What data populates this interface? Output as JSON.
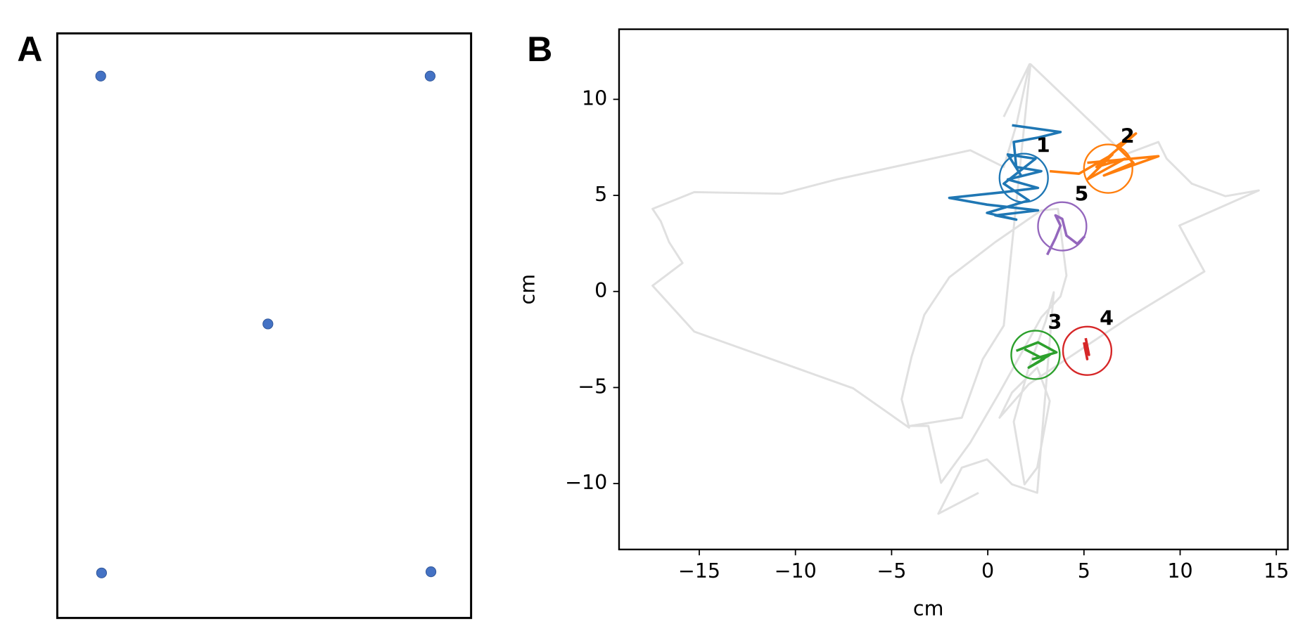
{
  "chart_data": [
    {
      "type": "scatter",
      "label": "A",
      "color": "#4472c4",
      "xlim": [
        0,
        1
      ],
      "ylim": [
        0,
        1
      ],
      "x": [
        0.105,
        0.901,
        0.509,
        0.107,
        0.903
      ],
      "y": [
        0.927,
        0.927,
        0.503,
        0.077,
        0.079
      ]
    },
    {
      "type": "line",
      "label": "B",
      "xlabel": "cm",
      "ylabel": "cm",
      "xlim": [
        -19.17,
        15.6
      ],
      "ylim": [
        -13.43,
        13.65
      ],
      "xticks": [
        {
          "value": -15,
          "label": "−15"
        },
        {
          "value": -10,
          "label": "−10"
        },
        {
          "value": -5,
          "label": "−5"
        },
        0,
        5,
        10,
        15
      ],
      "yticks": [
        {
          "value": -10,
          "label": "−10"
        },
        {
          "value": -5,
          "label": "−5"
        },
        0,
        5,
        10
      ],
      "background": {
        "color": "#e0e0e0",
        "x": [
          0.83,
          2.17,
          1.48,
          0.83,
          -0.91,
          -7.87,
          -10.7,
          -15.26,
          -17.43,
          -17.0,
          -16.57,
          -15.87,
          -17.43,
          -15.26,
          -7.0,
          -4.09,
          -4.48,
          -3.96,
          -3.3,
          -2.0,
          0.39,
          2.78,
          3.65,
          4.09,
          3.78,
          2.78,
          1.7,
          0.61,
          -0.91,
          -2.43,
          -3.09,
          -4.04,
          -1.35,
          -0.26,
          0.83,
          2.22,
          7.13,
          8.87,
          9.3,
          10.61,
          12.35,
          14.09,
          9.96,
          11.26,
          7.35,
          4.74,
          2.13,
          0.61,
          1.26,
          2.57,
          3.22,
          2.57,
          1.91,
          1.35,
          2.13,
          3.0,
          3.43,
          2.57,
          1.26,
          -0.04,
          -1.35,
          -2.57,
          -0.48
        ],
        "y": [
          9.09,
          11.83,
          8.65,
          6.48,
          7.35,
          5.83,
          5.09,
          5.17,
          4.3,
          3.65,
          2.57,
          1.48,
          0.3,
          -2.09,
          -5.04,
          -7.09,
          -5.61,
          -3.39,
          -1.22,
          0.74,
          2.57,
          4.22,
          4.3,
          0.83,
          -0.26,
          -1.35,
          -3.3,
          -5.26,
          -7.87,
          -9.96,
          -7.0,
          -7.0,
          -6.57,
          -3.52,
          -1.78,
          11.83,
          7.13,
          7.78,
          6.91,
          5.61,
          4.96,
          5.26,
          3.43,
          1.04,
          -1.35,
          -3.09,
          -4.83,
          -6.57,
          -5.26,
          -3.96,
          -5.7,
          -9.17,
          -10.04,
          -6.78,
          -3.96,
          -1.57,
          -0.04,
          -10.48,
          -10.04,
          -8.74,
          -9.17,
          -11.57,
          -10.48
        ]
      },
      "series": [
        {
          "label": "1",
          "color": "#1f77b4",
          "x": [
            1.26,
            3.78,
            2.57,
            1.35,
            1.48,
            2.78,
            1.04,
            2.61,
            0.83,
            -2.0,
            -0.04,
            2.61,
            0.39,
            1.48,
            -0.04,
            2.13,
            0.83,
            2.48,
            1.04,
            1.78
          ],
          "y": [
            8.65,
            8.3,
            8.0,
            7.78,
            6.48,
            6.26,
            5.83,
            5.39,
            5.17,
            4.87,
            4.52,
            4.22,
            3.96,
            3.74,
            4.09,
            4.74,
            5.61,
            6.91,
            7.13,
            5.96
          ],
          "circle": {
            "x": 1.87,
            "y": 5.91,
            "r": 1.26
          }
        },
        {
          "label": "2",
          "color": "#ff7f0e",
          "x": [
            3.22,
            4.74,
            6.48,
            5.17,
            7.13,
            5.65,
            7.7,
            6.7,
            7.57,
            6.04,
            8.87,
            5.17
          ],
          "y": [
            6.26,
            6.13,
            7.13,
            5.83,
            6.91,
            6.48,
            8.22,
            7.57,
            6.7,
            6.04,
            7.04,
            6.7
          ],
          "circle": {
            "x": 6.26,
            "y": 6.39,
            "r": 1.26
          }
        },
        {
          "label": "3",
          "color": "#2ca02c",
          "x": [
            1.48,
            2.61,
            3.57,
            2.35,
            3.22,
            2.13,
            2.91,
            1.91
          ],
          "y": [
            -3.09,
            -2.65,
            -3.17,
            -3.52,
            -3.3,
            -3.96,
            -3.52,
            -3.0
          ],
          "circle": {
            "x": 2.48,
            "y": -3.3,
            "r": 1.26
          }
        },
        {
          "label": "4",
          "color": "#d62728",
          "x": [
            5.09,
            5.26,
            5.04,
            5.17,
            5.0
          ],
          "y": [
            -2.43,
            -3.3,
            -2.87,
            -3.52,
            -2.65
          ],
          "circle": {
            "x": 5.17,
            "y": -3.09,
            "r": 1.26
          }
        },
        {
          "label": "5",
          "color": "#9467bd",
          "x": [
            3.09,
            3.52,
            3.78,
            3.52,
            3.87,
            4.09,
            4.65,
            5.04
          ],
          "y": [
            1.91,
            2.78,
            3.43,
            3.96,
            3.78,
            2.91,
            2.48,
            2.87
          ],
          "circle": {
            "x": 3.87,
            "y": 3.39,
            "r": 1.26
          }
        }
      ]
    }
  ]
}
